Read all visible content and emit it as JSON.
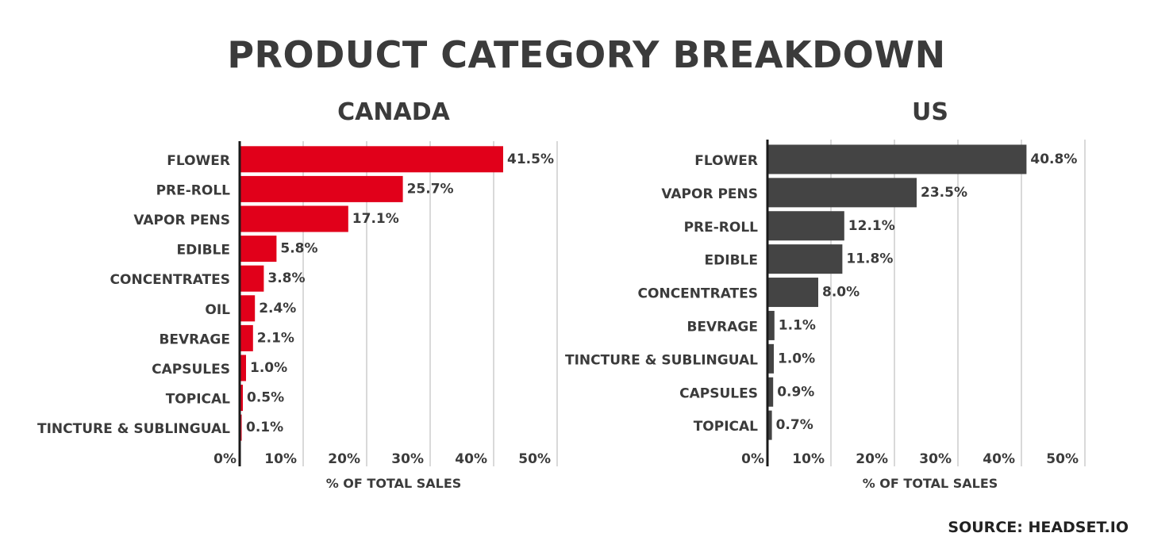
{
  "title": "PRODUCT CATEGORY BREAKDOWN",
  "source": "SOURCE: HEADSET.IO",
  "chart_data": [
    {
      "type": "bar",
      "orientation": "horizontal",
      "title": "CANADA",
      "xlabel": "% OF TOTAL SALES",
      "ylabel": "",
      "xlim": [
        0,
        50
      ],
      "xticks": [
        "0%",
        "10%",
        "20%",
        "30%",
        "40%",
        "50%"
      ],
      "grid": true,
      "color": "#e1001a",
      "categories": [
        "FLOWER",
        "PRE-ROLL",
        "VAPOR PENS",
        "EDIBLE",
        "CONCENTRATES",
        "OIL",
        "BEVRAGE",
        "CAPSULES",
        "TOPICAL",
        "TINCTURE & SUBLINGUAL"
      ],
      "values": [
        41.5,
        25.7,
        17.1,
        5.8,
        3.8,
        2.4,
        2.1,
        1.0,
        0.5,
        0.1
      ],
      "value_labels": [
        "41.5%",
        "25.7%",
        "17.1%",
        "5.8%",
        "3.8%",
        "2.4%",
        "2.1%",
        "1.0%",
        "0.5%",
        "0.1%"
      ]
    },
    {
      "type": "bar",
      "orientation": "horizontal",
      "title": "US",
      "xlabel": "% OF TOTAL SALES",
      "ylabel": "",
      "xlim": [
        0,
        50
      ],
      "xticks": [
        "0%",
        "10%",
        "20%",
        "30%",
        "40%",
        "50%"
      ],
      "grid": true,
      "color": "#444444",
      "categories": [
        "FLOWER",
        "VAPOR PENS",
        "PRE-ROLL",
        "EDIBLE",
        "CONCENTRATES",
        "BEVRAGE",
        "TINCTURE & SUBLINGUAL",
        "CAPSULES",
        "TOPICAL"
      ],
      "values": [
        40.8,
        23.5,
        12.1,
        11.8,
        8.0,
        1.1,
        1.0,
        0.9,
        0.7
      ],
      "value_labels": [
        "40.8%",
        "23.5%",
        "12.1%",
        "11.8%",
        "8.0%",
        "1.1%",
        "1.0%",
        "0.9%",
        "0.7%"
      ]
    }
  ]
}
